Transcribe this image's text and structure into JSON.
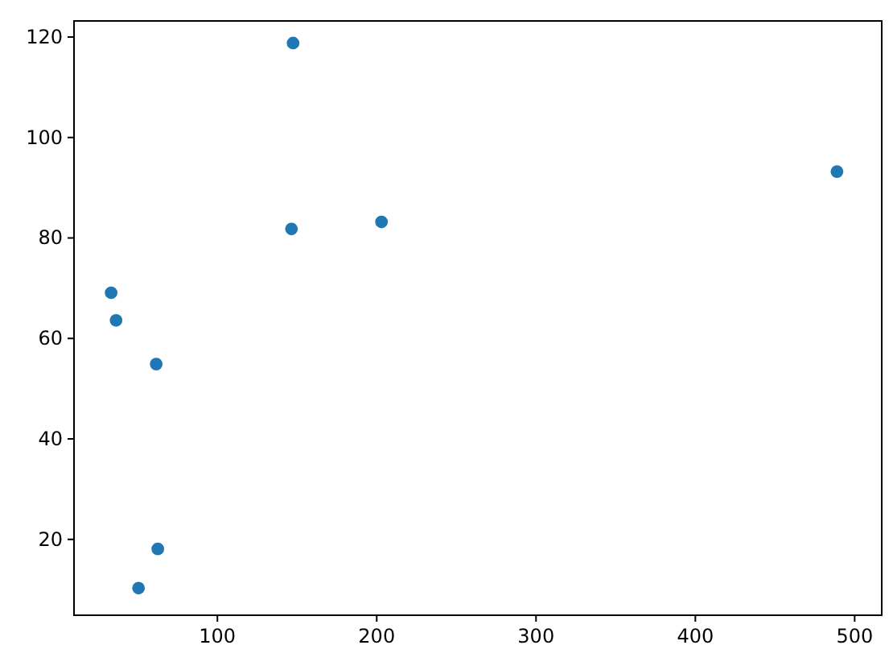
{
  "chart_data": {
    "type": "scatter",
    "x": [
      147.5,
      488.9,
      146.5,
      203,
      33.3,
      36.4,
      61.6,
      62.6,
      50.5
    ],
    "values": [
      118.8,
      93.2,
      81.8,
      83.2,
      69.1,
      63.6,
      54.9,
      18.1,
      10.3
    ],
    "color": "#1f77b4",
    "marker": "circle",
    "xlim": [
      10,
      517
    ],
    "xticks": [
      100,
      200,
      300,
      400,
      500
    ],
    "ylim": [
      4.9,
      123.2
    ],
    "yticks": [
      20,
      40,
      60,
      80,
      100,
      120
    ],
    "grid": false
  }
}
